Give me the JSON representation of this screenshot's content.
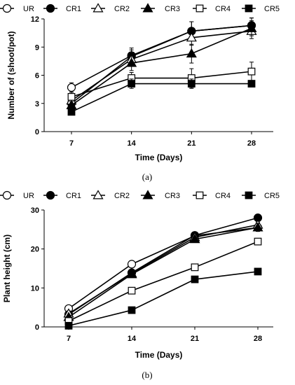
{
  "chart_data": [
    {
      "type": "line",
      "panel_label": "(a)",
      "xlabel": "Time (Days)",
      "ylabel": "Number of (shoot/pot)",
      "x": [
        7,
        14,
        21,
        28
      ],
      "ylim": [
        0,
        12
      ],
      "yticks": [
        0,
        3,
        6,
        9,
        12
      ],
      "grid": false,
      "legend_position": "top",
      "series": [
        {
          "name": "UR",
          "marker": "open-circle",
          "values": [
            4.7,
            8.1,
            10.7,
            11.3
          ],
          "errors": [
            0.5,
            0.8,
            1.0,
            0.8
          ]
        },
        {
          "name": "CR1",
          "marker": "filled-circle",
          "values": [
            3.0,
            8.0,
            10.7,
            11.3
          ],
          "errors": [
            0.4,
            0.7,
            1.0,
            0.8
          ]
        },
        {
          "name": "CR2",
          "marker": "open-triangle",
          "values": [
            3.3,
            7.7,
            10.0,
            10.7
          ],
          "errors": [
            0.4,
            0.7,
            0.8,
            0.8
          ]
        },
        {
          "name": "CR3",
          "marker": "filled-triangle",
          "values": [
            2.8,
            7.3,
            8.3,
            11.0
          ],
          "errors": [
            0.4,
            0.8,
            1.0,
            0.8
          ]
        },
        {
          "name": "CR4",
          "marker": "open-square",
          "values": [
            3.7,
            5.7,
            5.7,
            6.4
          ],
          "errors": [
            0.5,
            0.6,
            1.0,
            1.0
          ]
        },
        {
          "name": "CR5",
          "marker": "filled-square",
          "values": [
            2.1,
            5.1,
            5.1,
            5.1
          ],
          "errors": [
            0.2,
            0.5,
            0.5,
            0.0
          ]
        }
      ]
    },
    {
      "type": "line",
      "panel_label": "(b)",
      "xlabel": "Time (Days)",
      "ylabel": "Plant height (cm)",
      "x": [
        7,
        14,
        21,
        28
      ],
      "ylim": [
        0,
        30
      ],
      "yticks": [
        0,
        10,
        20,
        30
      ],
      "grid": false,
      "legend_position": "top",
      "series": [
        {
          "name": "UR",
          "marker": "open-circle",
          "values": [
            4.7,
            16.1,
            23.4,
            25.5
          ],
          "errors": [
            0.3,
            0.5,
            0.5,
            0.6
          ]
        },
        {
          "name": "CR1",
          "marker": "filled-circle",
          "values": [
            3.2,
            13.9,
            23.5,
            28.0
          ],
          "errors": [
            0.3,
            0.5,
            0.5,
            0.5
          ]
        },
        {
          "name": "CR2",
          "marker": "open-triangle",
          "values": [
            3.4,
            13.7,
            23.0,
            26.2
          ],
          "errors": [
            0.3,
            0.5,
            0.5,
            0.6
          ]
        },
        {
          "name": "CR3",
          "marker": "filled-triangle",
          "values": [
            2.5,
            13.5,
            22.5,
            25.5
          ],
          "errors": [
            0.3,
            0.5,
            0.5,
            1.0
          ]
        },
        {
          "name": "CR4",
          "marker": "open-square",
          "values": [
            1.5,
            9.3,
            15.3,
            21.9
          ],
          "errors": [
            0.2,
            0.4,
            0.4,
            0.5
          ]
        },
        {
          "name": "CR5",
          "marker": "filled-square",
          "values": [
            0.3,
            4.3,
            12.2,
            14.2
          ],
          "errors": [
            0.1,
            0.3,
            0.4,
            0.4
          ]
        }
      ]
    }
  ]
}
